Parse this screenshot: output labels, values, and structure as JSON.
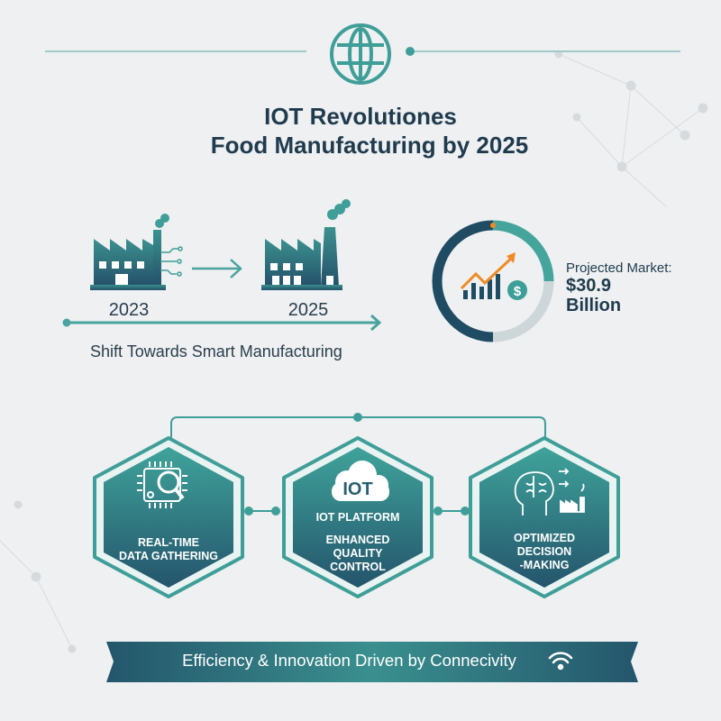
{
  "header": {
    "icon": "globe-icon",
    "title_line1": "IOT Revolutiones",
    "title_line2": "Food Manufacturing by 2025"
  },
  "timeline": {
    "from_year": "2023",
    "to_year": "2025",
    "caption": "Shift Towards Smart Manufacturing",
    "icons": [
      "factory-iot-icon",
      "arrow-right-icon",
      "factory-smokestack-icon"
    ]
  },
  "market": {
    "label": "Projected Market:",
    "value": "$30.9",
    "unit": "Billion",
    "icon": "growth-chart-dollar-icon"
  },
  "features": [
    {
      "icon": "chip-magnifier-icon",
      "badge": "",
      "lines": [
        "REAL-TIME",
        "DATA GATHERING"
      ]
    },
    {
      "icon": "cloud-icon",
      "badge": "IOT",
      "subtitle": "IOT PLATFORM",
      "lines": [
        "ENHANCED",
        "QUALITY",
        "CONTROL"
      ]
    },
    {
      "icon": "brain-factory-icon",
      "badge": "",
      "lines": [
        "OPTIMIZED",
        "DECISION",
        "-MAKING"
      ]
    }
  ],
  "banner": {
    "text": "Efficiency & Innovation Driven by Connecivity",
    "icon": "wifi-icon"
  },
  "colors": {
    "teal": "#3f9e98",
    "navy": "#1f4b63",
    "orange": "#f08a24",
    "background": "#eef0f1"
  }
}
